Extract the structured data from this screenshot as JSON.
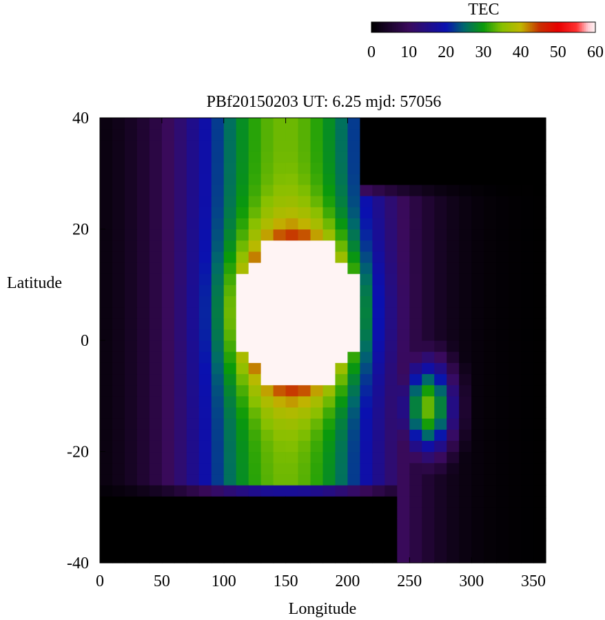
{
  "chart_data": {
    "type": "heatmap",
    "title": "PBf20150203  UT: 6.25  mjd: 57056",
    "xlabel": "Longitude",
    "ylabel": "Latitude",
    "xlim": [
      0,
      360
    ],
    "ylim": [
      -40,
      40
    ],
    "x_ticks": [
      "0",
      "50",
      "100",
      "150",
      "200",
      "250",
      "300",
      "350"
    ],
    "y_ticks": [
      "40",
      "20",
      "0",
      "-20",
      "-40"
    ],
    "colorbar": {
      "label": "TEC",
      "range": [
        0,
        60
      ],
      "ticks": [
        "0",
        "10",
        "20",
        "30",
        "40",
        "50",
        "60"
      ],
      "colormap": [
        [
          0,
          "#000000"
        ],
        [
          10,
          "#3a0a5c"
        ],
        [
          20,
          "#0a10b0"
        ],
        [
          25,
          "#006a6a"
        ],
        [
          30,
          "#0a9a0a"
        ],
        [
          35,
          "#88c000"
        ],
        [
          40,
          "#c0b800"
        ],
        [
          45,
          "#c83000"
        ],
        [
          50,
          "#e80000"
        ],
        [
          55,
          "#ff3030"
        ],
        [
          58,
          "#ffc8d0"
        ],
        [
          60,
          "#fff4f4"
        ]
      ]
    },
    "series": [
      {
        "peak_tec": 60,
        "peak_region_center_lon_lat": [
          160,
          5
        ],
        "peak_region_radii_lon_lat": [
          50,
          14
        ],
        "main_trough_center_lon": 150,
        "main_trough_width_deg": 85,
        "secondary_enhancement": [
          {
            "lon": 265,
            "lat": -12,
            "tec": 34
          }
        ],
        "low_value_regions": [
          {
            "area": "south-west",
            "lon_range": [
              0,
              240
            ],
            "lat_range": [
              -40,
              -25
            ],
            "tec": 1
          },
          {
            "area": "north-east",
            "lon_range": [
              215,
              360
            ],
            "lat_range": [
              25,
              40
            ],
            "tec": 1
          }
        ]
      }
    ]
  }
}
